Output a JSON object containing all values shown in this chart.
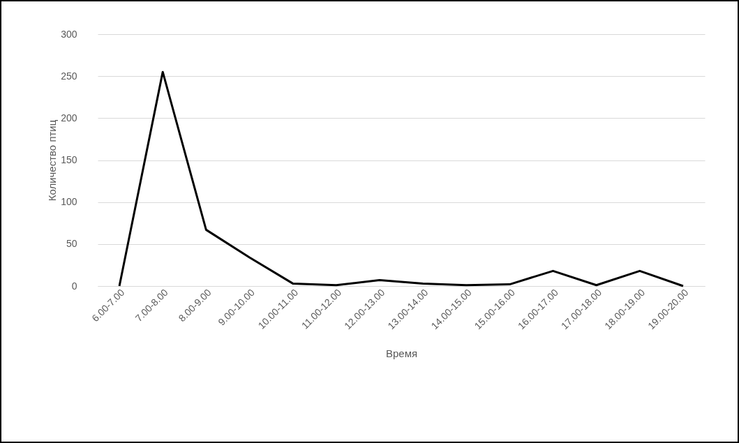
{
  "chart_data": {
    "type": "line",
    "xlabel": "Время",
    "ylabel": "Количество птиц",
    "categories": [
      "6.00-7.00",
      "7.00-8.00",
      "8.00-9.00",
      "9.00-10.00",
      "10.00-11.00",
      "11.00-12.00",
      "12.00-13.00",
      "13.00-14.00",
      "14.00-15.00",
      "15.00-16.00",
      "16.00-17.00",
      "17.00-18.00",
      "18.00-19.00",
      "19.00-20.00"
    ],
    "series": [
      {
        "color": "#000000",
        "values": [
          0,
          255,
          67,
          34,
          3,
          1,
          7,
          3,
          1,
          2,
          18,
          1,
          18,
          0
        ]
      }
    ],
    "ylim": [
      0,
      300
    ],
    "yticks": [
      0,
      50,
      100,
      150,
      200,
      250,
      300
    ],
    "grid": "y",
    "marker": "none",
    "line_style": "solid"
  }
}
